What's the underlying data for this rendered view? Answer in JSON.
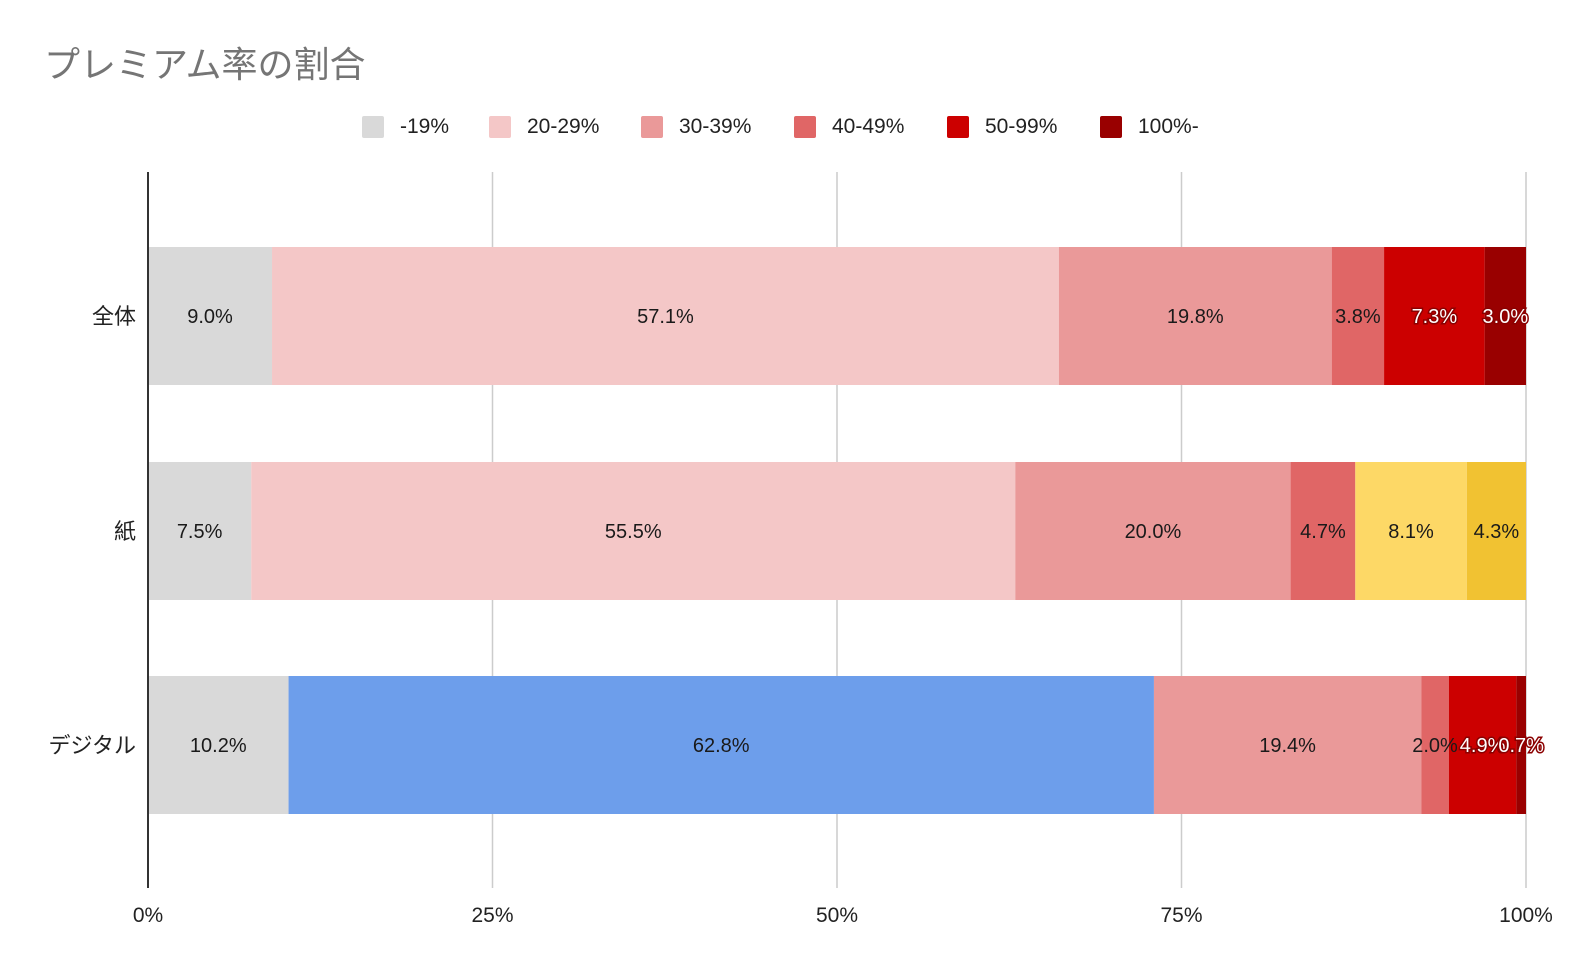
{
  "chart_data": {
    "type": "bar",
    "orientation": "horizontal",
    "stacked": "percent",
    "title": "プレミアム率の割合",
    "legend_position": "top",
    "grid": true,
    "xlim": [
      0,
      100
    ],
    "x_ticks": [
      "0%",
      "25%",
      "50%",
      "75%",
      "100%"
    ],
    "x_tick_values": [
      0,
      25,
      50,
      75,
      100
    ],
    "categories": [
      "全体",
      "紙",
      "デジタル"
    ],
    "series": [
      {
        "name": "-19%",
        "color": "#d9d9d9",
        "values": [
          9.0,
          7.5,
          10.2
        ],
        "labels": [
          "9.0%",
          "7.5%",
          "10.2%"
        ]
      },
      {
        "name": "20-29%",
        "color": "#f4c7c7",
        "values": [
          57.1,
          55.5,
          62.8
        ],
        "labels": [
          "57.1%",
          "55.5%",
          "62.8%"
        ]
      },
      {
        "name": "30-39%",
        "color": "#ea9999",
        "values": [
          19.8,
          20.0,
          19.4
        ],
        "labels": [
          "19.8%",
          "20.0%",
          "19.4%"
        ]
      },
      {
        "name": "40-49%",
        "color": "#e06666",
        "values": [
          3.8,
          4.7,
          2.0
        ],
        "labels": [
          "3.8%",
          "4.7%",
          "2.0%"
        ]
      },
      {
        "name": "50-99%",
        "color": "#cc0000",
        "values": [
          7.3,
          8.1,
          4.9
        ],
        "labels": [
          "7.3%",
          "8.1%",
          "4.9%"
        ]
      },
      {
        "name": "100%-",
        "color": "#990000",
        "values": [
          3.0,
          4.3,
          0.7
        ],
        "labels": [
          "3.0%",
          "4.3%",
          "0.7%"
        ]
      }
    ],
    "color_overrides": [
      {
        "category_index": 1,
        "series_index": 4,
        "color": "#fdd866"
      },
      {
        "category_index": 1,
        "series_index": 5,
        "color": "#f1c232"
      },
      {
        "category_index": 2,
        "series_index": 1,
        "color": "#6d9eeb"
      }
    ]
  }
}
